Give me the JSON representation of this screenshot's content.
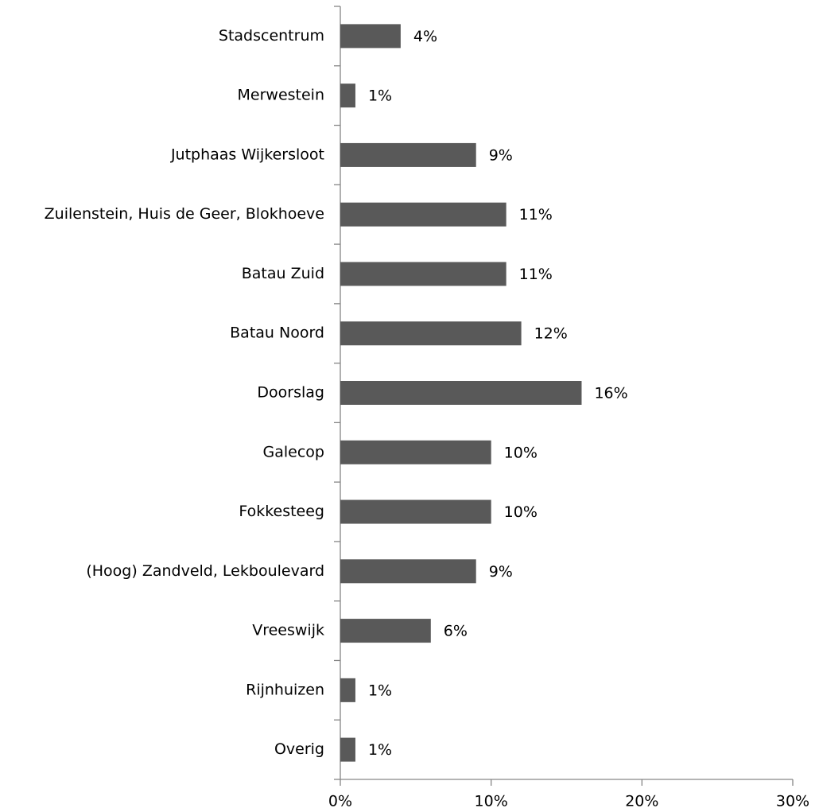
{
  "chart_data": {
    "type": "barh",
    "categories": [
      "Stadscentrum",
      "Merwestein",
      "Jutphaas Wijkersloot",
      "Zuilenstein, Huis de Geer, Blokhoeve",
      "Batau Zuid",
      "Batau Noord",
      "Doorslag",
      "Galecop",
      "Fokkesteeg",
      "(Hoog) Zandveld, Lekboulevard",
      "Vreeswijk",
      "Rijnhuizen",
      "Overig"
    ],
    "values": [
      4,
      1,
      9,
      11,
      11,
      12,
      16,
      10,
      10,
      9,
      6,
      1,
      1
    ],
    "value_labels": [
      "4%",
      "1%",
      "9%",
      "11%",
      "11%",
      "12%",
      "16%",
      "10%",
      "10%",
      "9%",
      "6%",
      "1%",
      "1%"
    ],
    "color": "#595959",
    "xlim": [
      0,
      30
    ],
    "xticks": [
      {
        "value": 0,
        "label": "0%"
      },
      {
        "value": 10,
        "label": "10%"
      },
      {
        "value": 20,
        "label": "20%"
      },
      {
        "value": 30,
        "label": "30%"
      }
    ],
    "grid": false
  }
}
